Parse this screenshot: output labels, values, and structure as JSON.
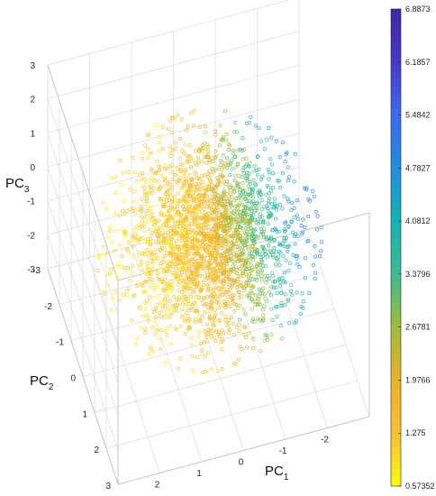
{
  "chart_data": {
    "type": "scatter",
    "title": "",
    "axes": {
      "pc1": {
        "label": "PC",
        "subscript": "1",
        "range": [
          -3,
          3
        ],
        "tick_labels": [
          "2",
          "1",
          "0",
          "-1",
          "-2"
        ]
      },
      "pc2": {
        "label": "PC",
        "subscript": "2",
        "range": [
          -3,
          3
        ],
        "tick_labels": [
          "3",
          "2",
          "1",
          "0",
          "-1",
          "-2",
          "-3"
        ]
      },
      "pc3": {
        "label": "PC",
        "subscript": "3",
        "range": [
          -3,
          3
        ],
        "tick_labels": [
          "3",
          "2",
          "1",
          "0",
          "-1",
          "-2",
          "-3"
        ]
      }
    },
    "grid": true,
    "marker": "hollow-circle",
    "colorbar": {
      "min": 0.57352,
      "max": 6.8873,
      "tick_labels": [
        "6.8873",
        "6.1857",
        "5.4842",
        "4.7827",
        "4.0812",
        "3.3796",
        "2.6781",
        "1.9766",
        "1.275",
        "0.57352"
      ],
      "colormap": [
        "#f9fb0e",
        "#fbbf32",
        "#e8b22a",
        "#9fbd3c",
        "#3dbb8e",
        "#12b3b4",
        "#1f8de0",
        "#3d68f2",
        "#4738c8",
        "#3e26a8"
      ]
    },
    "distribution": {
      "count": 2600,
      "center": [
        0,
        0,
        0
      ],
      "spread": [
        1.0,
        1.0,
        1.0
      ],
      "color_gradient_axis": "pc1"
    }
  }
}
